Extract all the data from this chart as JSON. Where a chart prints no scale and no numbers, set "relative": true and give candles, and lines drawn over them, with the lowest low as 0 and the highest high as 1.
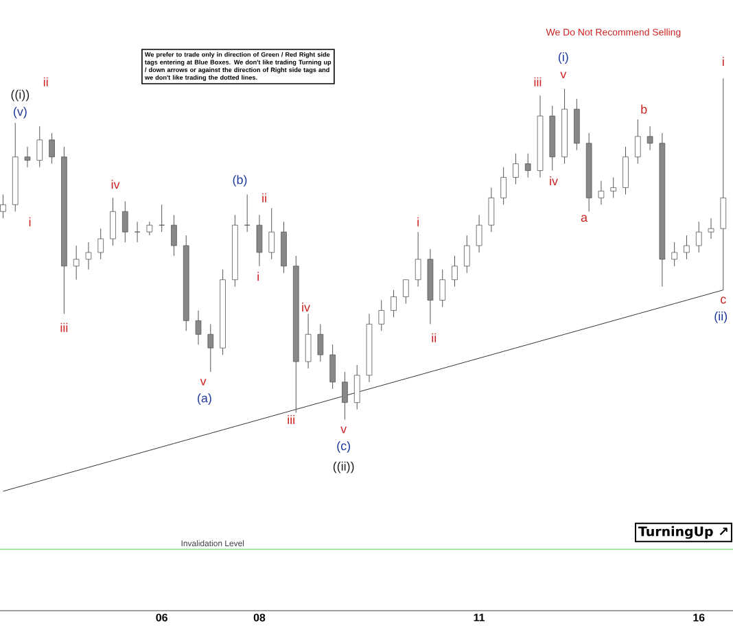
{
  "chart_data": {
    "type": "candlestick",
    "relative": true,
    "color": "#555555",
    "categories": [
      null,
      null,
      null,
      null,
      null,
      null,
      null,
      null,
      null,
      null,
      null,
      null,
      null,
      "06",
      null,
      null,
      null,
      null,
      null,
      null,
      null,
      "08",
      null,
      null,
      null,
      null,
      null,
      null,
      null,
      null,
      null,
      null,
      null,
      null,
      null,
      null,
      null,
      null,
      null,
      "11",
      null,
      null,
      null,
      null,
      null,
      null,
      null,
      null,
      null,
      null,
      null,
      null,
      null,
      null,
      null,
      null,
      null,
      "16",
      null,
      null
    ],
    "ohlc": [
      [
        0.61,
        0.66,
        0.59,
        0.63
      ],
      [
        0.63,
        0.87,
        0.61,
        0.77
      ],
      [
        0.77,
        0.8,
        0.74,
        0.76
      ],
      [
        0.76,
        0.86,
        0.74,
        0.82
      ],
      [
        0.82,
        0.84,
        0.75,
        0.77
      ],
      [
        0.77,
        0.8,
        0.31,
        0.45
      ],
      [
        0.45,
        0.51,
        0.41,
        0.47
      ],
      [
        0.47,
        0.52,
        0.44,
        0.49
      ],
      [
        0.49,
        0.56,
        0.47,
        0.53
      ],
      [
        0.53,
        0.65,
        0.51,
        0.61
      ],
      [
        0.61,
        0.64,
        0.52,
        0.55
      ],
      [
        0.55,
        0.58,
        0.52,
        0.55
      ],
      [
        0.55,
        0.58,
        0.54,
        0.57
      ],
      [
        0.57,
        0.63,
        0.55,
        0.57
      ],
      [
        0.57,
        0.6,
        0.48,
        0.51
      ],
      [
        0.51,
        0.54,
        0.26,
        0.29
      ],
      [
        0.29,
        0.32,
        0.22,
        0.25
      ],
      [
        0.25,
        0.28,
        0.14,
        0.21
      ],
      [
        0.21,
        0.44,
        0.19,
        0.41
      ],
      [
        0.41,
        0.6,
        0.39,
        0.57
      ],
      [
        0.57,
        0.66,
        0.55,
        0.57
      ],
      [
        0.57,
        0.6,
        0.45,
        0.49
      ],
      [
        0.49,
        0.62,
        0.47,
        0.55
      ],
      [
        0.55,
        0.58,
        0.43,
        0.45
      ],
      [
        0.45,
        0.48,
        0.02,
        0.17
      ],
      [
        0.17,
        0.31,
        0.15,
        0.25
      ],
      [
        0.25,
        0.28,
        0.17,
        0.19
      ],
      [
        0.19,
        0.22,
        0.09,
        0.11
      ],
      [
        0.11,
        0.14,
        0,
        0.05
      ],
      [
        0.05,
        0.16,
        0.03,
        0.13
      ],
      [
        0.13,
        0.31,
        0.11,
        0.28
      ],
      [
        0.28,
        0.35,
        0.26,
        0.32
      ],
      [
        0.32,
        0.38,
        0.3,
        0.36
      ],
      [
        0.36,
        0.41,
        0.34,
        0.41
      ],
      [
        0.41,
        0.55,
        0.39,
        0.47
      ],
      [
        0.47,
        0.5,
        0.28,
        0.35
      ],
      [
        0.35,
        0.44,
        0.33,
        0.41
      ],
      [
        0.41,
        0.48,
        0.39,
        0.45
      ],
      [
        0.45,
        0.54,
        0.43,
        0.51
      ],
      [
        0.51,
        0.6,
        0.49,
        0.57
      ],
      [
        0.57,
        0.68,
        0.55,
        0.65
      ],
      [
        0.65,
        0.74,
        0.63,
        0.71
      ],
      [
        0.71,
        0.78,
        0.69,
        0.75
      ],
      [
        0.75,
        0.78,
        0.71,
        0.73
      ],
      [
        0.73,
        0.95,
        0.71,
        0.89
      ],
      [
        0.89,
        0.92,
        0.73,
        0.77
      ],
      [
        0.77,
        0.97,
        0.75,
        0.91
      ],
      [
        0.91,
        0.94,
        0.79,
        0.81
      ],
      [
        0.81,
        0.84,
        0.61,
        0.65
      ],
      [
        0.65,
        0.7,
        0.63,
        0.67
      ],
      [
        0.67,
        0.71,
        0.65,
        0.68
      ],
      [
        0.68,
        0.8,
        0.66,
        0.77
      ],
      [
        0.77,
        0.88,
        0.75,
        0.83
      ],
      [
        0.83,
        0.86,
        0.79,
        0.81
      ],
      [
        0.81,
        0.84,
        0.39,
        0.47
      ],
      [
        0.47,
        0.52,
        0.45,
        0.49
      ],
      [
        0.49,
        0.54,
        0.47,
        0.51
      ],
      [
        0.51,
        0.58,
        0.49,
        0.55
      ],
      [
        0.55,
        0.59,
        0.53,
        0.56
      ],
      [
        0.56,
        1,
        0.38,
        0.65
      ]
    ],
    "series": [
      {
        "type": "line",
        "color": "#333333",
        "values": [
          -0.21,
          -0.2,
          -0.19,
          -0.18,
          -0.17,
          -0.16,
          -0.15,
          -0.14,
          -0.13,
          -0.12,
          -0.11,
          -0.1,
          -0.09,
          -0.08,
          -0.07,
          -0.06,
          -0.05,
          -0.04,
          -0.03,
          -0.02,
          -0.01,
          0,
          0.01,
          0.02,
          0.03,
          0.04,
          0.05,
          0.06,
          0.07,
          0.08,
          0.09,
          0.1,
          0.11,
          0.12,
          0.13,
          0.14,
          0.15,
          0.16,
          0.17,
          0.18,
          0.19,
          0.2,
          0.21,
          0.22,
          0.23,
          0.24,
          0.25,
          0.26,
          0.27,
          0.28,
          0.29,
          0.3,
          0.31,
          0.32,
          0.33,
          0.34,
          0.35,
          0.36,
          0.37,
          0.38
        ]
      }
    ],
    "ref_lines": [
      {
        "axis": "y",
        "value": -0.38,
        "label": "Invalidation Level",
        "color": "#88dd88"
      }
    ],
    "annotations": [
      "We prefer to trade only in direction of Green / Red Right side tags entering at Blue Boxes. We don't like trading Turning up / down arrows or against the direction of Right side tags and we don't like trading the dotted lines.",
      "We Do Not Recommend Selling",
      "TurningUp ↗",
      "((i))",
      "(v)",
      "i",
      "ii",
      "iii",
      "iv",
      "v",
      "(a)",
      "(b)",
      "i",
      "ii",
      "iii",
      "iv",
      "v",
      "(c)",
      "((ii))",
      "i",
      "ii",
      "iii",
      "iv",
      "(i)",
      "v",
      "a",
      "b",
      "c",
      "(ii)",
      "i"
    ]
  }
}
